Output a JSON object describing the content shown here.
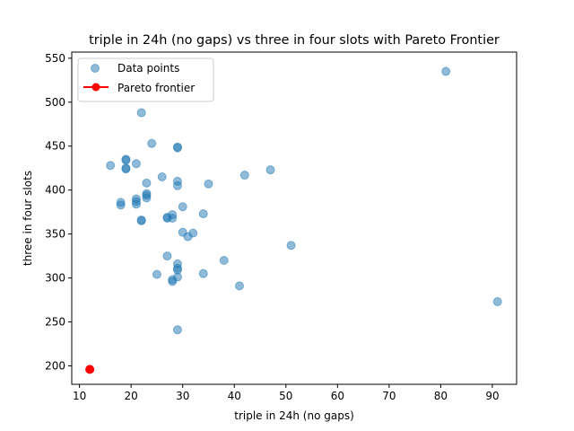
{
  "chart_data": {
    "type": "scatter",
    "title": "triple in 24h (no gaps) vs three in four slots with Pareto Frontier",
    "xlabel": "triple in 24h (no gaps)",
    "ylabel": "three in four slots",
    "xlim": [
      8.5,
      94.7
    ],
    "ylim": [
      179,
      557
    ],
    "x_ticks": [
      10,
      20,
      30,
      40,
      50,
      60,
      70,
      80,
      90
    ],
    "y_ticks": [
      200,
      250,
      300,
      350,
      400,
      450,
      500,
      550
    ],
    "grid": false,
    "legend_position": "upper-left",
    "series": [
      {
        "name": "Data points",
        "color": "#1f77b4",
        "points": [
          {
            "x": 81,
            "y": 535
          },
          {
            "x": 22,
            "y": 488
          },
          {
            "x": 24,
            "y": 453
          },
          {
            "x": 29,
            "y": 449
          },
          {
            "x": 29,
            "y": 448
          },
          {
            "x": 19,
            "y": 435
          },
          {
            "x": 19,
            "y": 434
          },
          {
            "x": 16,
            "y": 428
          },
          {
            "x": 21,
            "y": 430
          },
          {
            "x": 19,
            "y": 425
          },
          {
            "x": 19,
            "y": 424
          },
          {
            "x": 47,
            "y": 423
          },
          {
            "x": 42,
            "y": 417
          },
          {
            "x": 26,
            "y": 415
          },
          {
            "x": 29,
            "y": 410
          },
          {
            "x": 23,
            "y": 408
          },
          {
            "x": 35,
            "y": 407
          },
          {
            "x": 29,
            "y": 405
          },
          {
            "x": 23,
            "y": 396
          },
          {
            "x": 23,
            "y": 394
          },
          {
            "x": 23,
            "y": 391
          },
          {
            "x": 21,
            "y": 390
          },
          {
            "x": 21,
            "y": 387
          },
          {
            "x": 18,
            "y": 386
          },
          {
            "x": 18,
            "y": 383
          },
          {
            "x": 21,
            "y": 384
          },
          {
            "x": 30,
            "y": 381
          },
          {
            "x": 34,
            "y": 373
          },
          {
            "x": 28,
            "y": 372
          },
          {
            "x": 27,
            "y": 369
          },
          {
            "x": 28,
            "y": 368
          },
          {
            "x": 27,
            "y": 368
          },
          {
            "x": 22,
            "y": 366
          },
          {
            "x": 22,
            "y": 365
          },
          {
            "x": 30,
            "y": 352
          },
          {
            "x": 32,
            "y": 351
          },
          {
            "x": 31,
            "y": 347
          },
          {
            "x": 51,
            "y": 337
          },
          {
            "x": 27,
            "y": 325
          },
          {
            "x": 38,
            "y": 320
          },
          {
            "x": 29,
            "y": 316
          },
          {
            "x": 29,
            "y": 311
          },
          {
            "x": 29,
            "y": 309
          },
          {
            "x": 34,
            "y": 305
          },
          {
            "x": 25,
            "y": 304
          },
          {
            "x": 29,
            "y": 301
          },
          {
            "x": 28,
            "y": 298
          },
          {
            "x": 28,
            "y": 296
          },
          {
            "x": 41,
            "y": 291
          },
          {
            "x": 91,
            "y": 273
          },
          {
            "x": 29,
            "y": 241
          }
        ]
      },
      {
        "name": "Pareto frontier",
        "color": "#ff0000",
        "points": [
          {
            "x": 12,
            "y": 196
          }
        ]
      }
    ]
  }
}
